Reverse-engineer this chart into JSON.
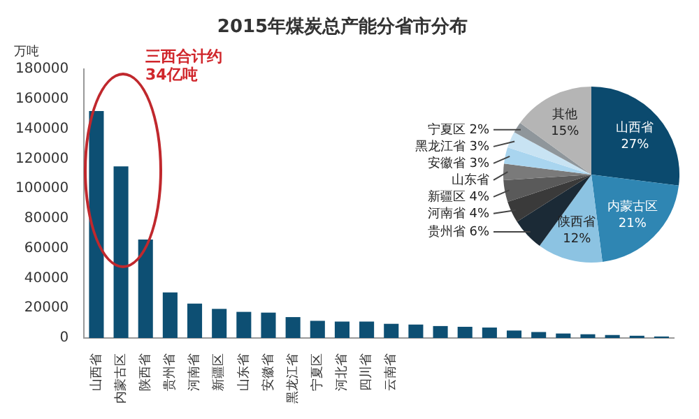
{
  "chart_data": [
    {
      "type": "bar",
      "title": "2015年煤炭总产能分省市分布",
      "ylabel": "万吨",
      "categories": [
        "山西省",
        "内蒙古区",
        "陕西省",
        "贵州省",
        "河南省",
        "新疆区",
        "山东省",
        "安徽省",
        "黑龙江省",
        "宁夏区",
        "河北省",
        "四川省",
        "云南省",
        null,
        null,
        null,
        null,
        null,
        null,
        null,
        null,
        null,
        null,
        null
      ],
      "values": [
        152000,
        115000,
        66000,
        30500,
        23000,
        19500,
        17500,
        17000,
        14000,
        11500,
        11000,
        11000,
        9500,
        9000,
        8000,
        7500,
        7000,
        5000,
        4000,
        3000,
        2500,
        2000,
        1500,
        1000
      ],
      "color": "#0d4f73",
      "ylim": [
        0,
        180000
      ],
      "yticks": [
        0,
        20000,
        40000,
        60000,
        80000,
        100000,
        120000,
        140000,
        160000,
        180000
      ],
      "grid": false,
      "legend": false,
      "annotations": [
        "三西合计约34亿吨"
      ]
    },
    {
      "type": "pie",
      "categories": [
        "山西省",
        "内蒙古区",
        "陕西省",
        "贵州省",
        "河南省",
        "新疆区",
        "山东省",
        "安徽省",
        "黑龙江省",
        "宁夏区",
        "其他"
      ],
      "values": [
        27,
        21,
        12,
        6,
        4,
        4,
        3,
        3,
        3,
        2,
        15
      ],
      "colors": [
        "#0b4a6e",
        "#2f86b3",
        "#8cc3e2",
        "#1b2a36",
        "#3a3a3a",
        "#5a5a5a",
        "#7a7a7a",
        "#a9d5ef",
        "#c8e3f3",
        "#8f969b",
        "#b5b5b5"
      ],
      "value_labels": [
        "27%",
        "21%",
        "12%",
        "6%",
        "4%",
        "4%",
        null,
        "3%",
        "3%",
        "2%",
        "15%"
      ],
      "legend": false
    }
  ]
}
